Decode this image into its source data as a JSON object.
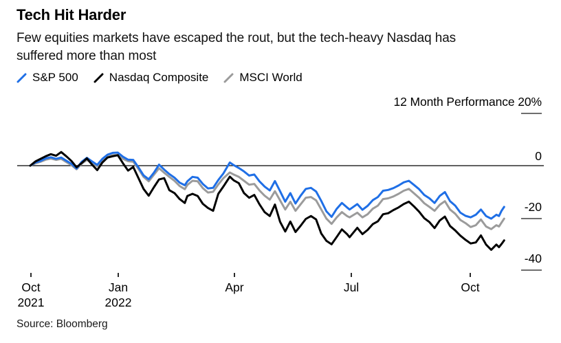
{
  "title": "Tech Hit Harder",
  "subtitle": "Few equities markets have escaped the rout, but the tech-heavy Nasdaq has suffered more than most",
  "subtitle_lines": [
    "Few equities markets have escaped the rout, but the tech-heavy Nasdaq has",
    "suffered more than most"
  ],
  "legend": {
    "items": [
      {
        "label": "S&P 500",
        "color": "#1f6fe6"
      },
      {
        "label": "Nasdaq Composite",
        "color": "#000000"
      },
      {
        "label": "MSCI World",
        "color": "#9b9b9b"
      }
    ]
  },
  "source": "Source: Bloomberg",
  "chart_data": {
    "type": "line",
    "title": "Tech Hit Harder",
    "ylabel": "12 Month Performance",
    "axis_top_label": "12 Month Performance 20%",
    "y_ticks": [
      20,
      0,
      -20,
      -40
    ],
    "y_tick_labels": [
      "0",
      "-20",
      "-40"
    ],
    "ylim": [
      -45,
      22
    ],
    "grid": "zero-line-only",
    "legend_position": "top-left",
    "x_unit": "days since 25 Oct 2021",
    "x_ticks": [
      {
        "t": 0,
        "label": "Oct",
        "year": "2021"
      },
      {
        "t": 68,
        "label": "Jan",
        "year": "2022"
      },
      {
        "t": 158,
        "label": "Apr"
      },
      {
        "t": 249,
        "label": "Jul"
      },
      {
        "t": 341,
        "label": "Oct"
      }
    ],
    "t": [
      0,
      4,
      8,
      12,
      16,
      20,
      24,
      28,
      32,
      36,
      40,
      44,
      48,
      52,
      56,
      60,
      64,
      68,
      72,
      76,
      80,
      84,
      88,
      92,
      96,
      100,
      104,
      108,
      112,
      116,
      120,
      122,
      126,
      130,
      134,
      138,
      142,
      146,
      150,
      155,
      158,
      162,
      166,
      170,
      174,
      178,
      182,
      186,
      190,
      194,
      198,
      202,
      206,
      210,
      214,
      218,
      222,
      226,
      230,
      234,
      238,
      242,
      246,
      248,
      254,
      258,
      262,
      266,
      270,
      274,
      278,
      282,
      286,
      290,
      294,
      298,
      302,
      306,
      310,
      314,
      318,
      322,
      326,
      330,
      334,
      338,
      342,
      346,
      350,
      354,
      358,
      362,
      364,
      366,
      368
    ],
    "series": [
      {
        "name": "S&P 500",
        "color": "#1f6fe6",
        "z": 2,
        "values": [
          0,
          1.2,
          1.8,
          2.8,
          3.2,
          2.6,
          3.1,
          1.9,
          0.7,
          -1.1,
          1.5,
          3.0,
          1.6,
          0.3,
          2.6,
          4.2,
          4.9,
          5.0,
          3.4,
          2.3,
          2.2,
          -0.6,
          -3.7,
          -5.2,
          -2.7,
          0.4,
          -1.5,
          -3.2,
          -4.6,
          -6.5,
          -7.5,
          -6.0,
          -4.3,
          -4.6,
          -7.0,
          -8.7,
          -8.5,
          -5.5,
          -3.0,
          1.2,
          0.2,
          -0.9,
          -2.2,
          -3.8,
          -3.4,
          -6.0,
          -8.0,
          -9.5,
          -5.9,
          -9.8,
          -13.8,
          -10.5,
          -14.5,
          -11.5,
          -8.9,
          -8.5,
          -9.9,
          -13.5,
          -17.5,
          -19.6,
          -16.5,
          -14.3,
          -16.0,
          -16.8,
          -14.7,
          -16.9,
          -15.4,
          -13.2,
          -12.0,
          -9.6,
          -9.3,
          -8.6,
          -7.6,
          -6.4,
          -5.8,
          -7.4,
          -9.0,
          -11.2,
          -12.5,
          -14.3,
          -11.6,
          -10.1,
          -13.6,
          -15.3,
          -18.0,
          -19.2,
          -19.8,
          -18.8,
          -16.8,
          -19.3,
          -20.3,
          -18.8,
          -19.3,
          -17.3,
          -15.8
        ]
      },
      {
        "name": "Nasdaq Composite",
        "color": "#000000",
        "z": 3,
        "values": [
          0,
          1.6,
          2.6,
          3.6,
          4.4,
          3.8,
          5.2,
          3.6,
          1.8,
          -0.6,
          1.0,
          2.8,
          0.4,
          -1.7,
          1.2,
          3.1,
          3.6,
          4.0,
          0.9,
          -1.9,
          -0.5,
          -4.7,
          -8.9,
          -11.5,
          -8.3,
          -5.3,
          -4.8,
          -9.4,
          -10.5,
          -12.8,
          -14.3,
          -11.6,
          -10.8,
          -11.6,
          -14.6,
          -16.2,
          -17.3,
          -10.8,
          -8.0,
          -4.2,
          -5.6,
          -6.7,
          -10.5,
          -12.3,
          -11.2,
          -14.8,
          -17.8,
          -19.3,
          -14.9,
          -21.5,
          -25.2,
          -21.4,
          -25.4,
          -23.0,
          -20.4,
          -19.3,
          -20.6,
          -26.0,
          -28.8,
          -30.1,
          -27.3,
          -24.4,
          -26.2,
          -27.4,
          -23.8,
          -26.2,
          -24.6,
          -22.4,
          -21.3,
          -18.6,
          -18.2,
          -17.0,
          -16.0,
          -14.7,
          -13.8,
          -15.6,
          -17.6,
          -20.1,
          -21.6,
          -23.9,
          -21.0,
          -19.5,
          -23.1,
          -24.8,
          -26.8,
          -28.4,
          -29.8,
          -29.4,
          -26.7,
          -30.2,
          -32.2,
          -30.2,
          -31.2,
          -30.0,
          -28.6
        ]
      },
      {
        "name": "MSCI World",
        "color": "#9b9b9b",
        "z": 1,
        "values": [
          0,
          0.9,
          1.5,
          2.3,
          2.7,
          2.2,
          2.6,
          1.4,
          0.2,
          -1.4,
          0.8,
          2.2,
          1.0,
          -0.2,
          2.0,
          3.4,
          4.0,
          4.1,
          2.6,
          1.7,
          1.5,
          -1.2,
          -4.3,
          -6.0,
          -3.5,
          -1.0,
          -2.7,
          -4.3,
          -5.8,
          -7.8,
          -9.0,
          -7.4,
          -5.8,
          -6.0,
          -8.6,
          -10.3,
          -10.0,
          -7.2,
          -4.8,
          -2.6,
          -3.4,
          -4.3,
          -5.8,
          -7.3,
          -7.0,
          -9.5,
          -11.5,
          -13.0,
          -9.8,
          -13.3,
          -16.8,
          -13.8,
          -17.3,
          -14.8,
          -12.3,
          -12.0,
          -13.3,
          -16.8,
          -20.3,
          -22.3,
          -19.8,
          -17.8,
          -19.3,
          -19.8,
          -18.0,
          -19.8,
          -18.6,
          -16.5,
          -15.3,
          -12.8,
          -12.5,
          -11.8,
          -10.8,
          -9.6,
          -8.9,
          -10.6,
          -12.3,
          -14.4,
          -15.8,
          -17.3,
          -15.0,
          -13.6,
          -16.8,
          -18.4,
          -20.8,
          -22.0,
          -23.5,
          -22.8,
          -20.6,
          -23.3,
          -24.3,
          -22.8,
          -23.3,
          -21.8,
          -20.3
        ]
      }
    ]
  }
}
